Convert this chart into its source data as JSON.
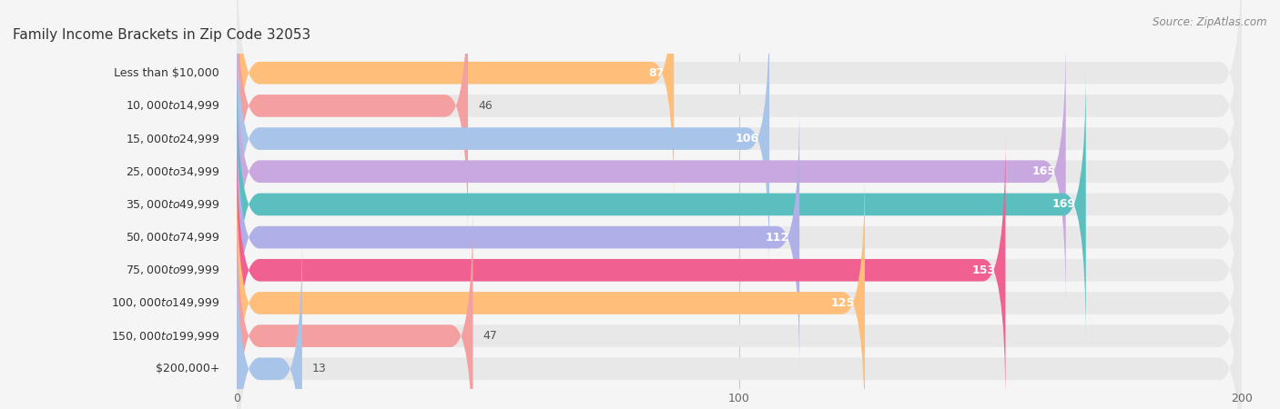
{
  "title": "Family Income Brackets in Zip Code 32053",
  "source": "Source: ZipAtlas.com",
  "categories": [
    "Less than $10,000",
    "$10,000 to $14,999",
    "$15,000 to $24,999",
    "$25,000 to $34,999",
    "$35,000 to $49,999",
    "$50,000 to $74,999",
    "$75,000 to $99,999",
    "$100,000 to $149,999",
    "$150,000 to $199,999",
    "$200,000+"
  ],
  "values": [
    87,
    46,
    106,
    165,
    169,
    112,
    153,
    125,
    47,
    13
  ],
  "colors": [
    "#FFBE7A",
    "#F4A0A0",
    "#A8C4E8",
    "#C9A8E0",
    "#5BBFBF",
    "#B0B0E8",
    "#F06090",
    "#FFBE7A",
    "#F4A0A0",
    "#A8C4E8"
  ],
  "xlim": [
    0,
    200
  ],
  "xticks": [
    0,
    100,
    200
  ],
  "bar_height": 0.68,
  "bg_color": "#f5f5f5",
  "bar_bg_color": "#e8e8e8",
  "title_fontsize": 11,
  "label_fontsize": 9,
  "value_fontsize": 9,
  "source_fontsize": 8.5,
  "value_threshold": 60
}
